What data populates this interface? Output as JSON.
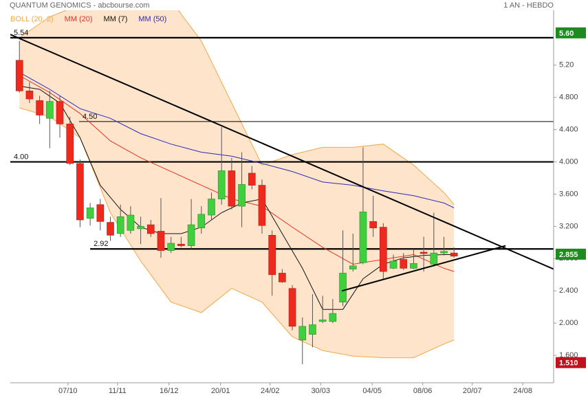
{
  "chart_data": {
    "type": "candlestick",
    "title": "QUANTUM GENOMICS - abcbourse.com",
    "subtitle": "1 AN - HEBDO",
    "x": [
      0,
      1,
      2,
      3,
      4,
      5,
      6,
      7,
      8,
      9,
      10,
      11,
      12,
      13,
      14,
      15,
      16,
      17,
      18,
      19,
      20,
      21,
      22,
      23,
      24,
      25,
      26,
      27,
      28,
      29,
      30,
      31,
      32,
      33,
      34,
      35,
      36,
      37,
      38,
      39,
      40,
      41,
      42,
      43
    ],
    "open": [
      5.26,
      4.88,
      4.76,
      4.54,
      4.75,
      4.47,
      3.98,
      3.3,
      3.47,
      3.25,
      3.11,
      3.15,
      3.17,
      3.22,
      3.14,
      2.9,
      2.98,
      2.96,
      3.18,
      3.34,
      3.54,
      3.89,
      3.45,
      3.86,
      3.71,
      3.09,
      2.62,
      2.43,
      1.79,
      1.86,
      2.02,
      2.02,
      2.26,
      2.67,
      2.75,
      3.26,
      3.19,
      2.68,
      2.79,
      2.68,
      2.88,
      2.73,
      2.87,
      2.87
    ],
    "high": [
      5.5,
      4.99,
      4.82,
      4.88,
      4.82,
      4.56,
      4.03,
      3.49,
      3.54,
      3.32,
      3.47,
      3.45,
      3.32,
      3.28,
      3.55,
      3.07,
      3.07,
      3.54,
      3.45,
      3.62,
      4.43,
      4.05,
      4.12,
      3.95,
      3.78,
      3.15,
      2.67,
      2.47,
      2.07,
      2.36,
      2.34,
      2.3,
      3.15,
      3.11,
      4.18,
      3.58,
      3.24,
      2.85,
      2.87,
      2.92,
      3.07,
      3.37,
      3.07,
      2.94
    ],
    "low": [
      4.86,
      4.73,
      4.47,
      4.17,
      4.3,
      3.96,
      3.19,
      3.21,
      3.15,
      3.02,
      3.07,
      3.11,
      2.98,
      3.07,
      2.81,
      2.87,
      2.94,
      2.92,
      3.11,
      3.28,
      3.47,
      3.41,
      3.19,
      3.66,
      3.11,
      2.34,
      2.5,
      1.91,
      1.49,
      1.7,
      2.0,
      2.0,
      2.21,
      2.64,
      2.73,
      3.07,
      2.55,
      2.67,
      2.66,
      2.67,
      2.64,
      2.7,
      2.84,
      2.81
    ],
    "close": [
      4.88,
      4.78,
      4.58,
      4.75,
      4.47,
      3.98,
      3.28,
      3.43,
      3.26,
      3.09,
      3.32,
      3.34,
      3.2,
      3.11,
      2.9,
      2.99,
      2.96,
      3.22,
      3.35,
      3.54,
      3.89,
      3.45,
      3.72,
      3.71,
      3.21,
      2.6,
      2.51,
      1.96,
      1.96,
      1.98,
      2.04,
      2.12,
      2.62,
      2.71,
      3.38,
      3.18,
      2.64,
      2.77,
      2.68,
      2.74,
      2.87,
      2.87,
      2.89,
      2.83
    ],
    "up_color": "#3fcf3f",
    "down_color": "#ee2a1e",
    "series": [
      {
        "name": "BOLL (20, 2)",
        "color": "#f0a848",
        "fill": "#fde4cb",
        "x": [
          0,
          3,
          6,
          9,
          12,
          15,
          18,
          21,
          24,
          27,
          30,
          33,
          36,
          39,
          42,
          43
        ],
        "upper": [
          5.54,
          5.8,
          5.95,
          6.05,
          6.1,
          6.0,
          5.5,
          4.73,
          3.96,
          4.09,
          4.18,
          4.18,
          4.22,
          3.96,
          3.62,
          3.47
        ],
        "lower": [
          4.67,
          4.56,
          4.3,
          3.37,
          2.77,
          2.26,
          2.13,
          2.43,
          2.26,
          1.83,
          1.66,
          1.59,
          1.57,
          1.57,
          1.74,
          1.79
        ]
      },
      {
        "name": "MM (20)",
        "color": "#e8321e",
        "x": [
          0,
          3,
          6,
          9,
          12,
          15,
          18,
          21,
          24,
          27,
          30,
          33,
          36,
          39,
          42,
          43
        ],
        "values": [
          5.07,
          4.86,
          4.6,
          4.26,
          4.05,
          3.88,
          3.71,
          3.54,
          3.45,
          3.19,
          2.94,
          2.73,
          2.79,
          2.85,
          2.68,
          2.64
        ]
      },
      {
        "name": "MM (7)",
        "color": "#111111",
        "x": [
          0,
          2,
          4,
          6,
          8,
          10,
          12,
          14,
          16,
          18,
          20,
          22,
          24,
          26,
          28,
          30,
          32,
          34,
          36,
          38,
          40,
          42,
          43
        ],
        "values": [
          4.94,
          4.9,
          4.73,
          4.3,
          3.71,
          3.41,
          3.19,
          3.11,
          3.11,
          3.19,
          3.37,
          3.49,
          3.54,
          3.11,
          2.68,
          2.17,
          2.17,
          2.55,
          2.73,
          2.81,
          2.84,
          2.85,
          2.85
        ]
      },
      {
        "name": "MM (50)",
        "color": "#2a2ab8",
        "x": [
          0,
          3,
          6,
          9,
          12,
          15,
          18,
          21,
          24,
          27,
          30,
          33,
          36,
          39,
          42,
          43
        ],
        "values": [
          5.11,
          4.9,
          4.66,
          4.54,
          4.35,
          4.22,
          4.12,
          4.07,
          3.98,
          3.88,
          3.75,
          3.71,
          3.64,
          3.58,
          3.49,
          3.43
        ]
      }
    ],
    "levels": [
      {
        "value": 5.54,
        "label": "5.54",
        "start": -0.9,
        "thick": true
      },
      {
        "value": 4.5,
        "label": "4.50",
        "start": 5.9,
        "thick": false
      },
      {
        "value": 4,
        "label": "4.00",
        "start": -0.9,
        "thick": true
      },
      {
        "value": 2.92,
        "label": "2.92",
        "start": 7.0,
        "thick": true
      }
    ],
    "trendlines": [
      {
        "x": [
          -0.9,
          52.85
        ],
        "y": [
          5.58,
          2.67
        ]
      },
      {
        "x": [
          31.9,
          48.1
        ],
        "y": [
          2.4,
          2.96
        ]
      }
    ],
    "markers": [
      {
        "value": 5.6,
        "label": "5.60",
        "color": "#1f8a1f"
      },
      {
        "value": 2.855,
        "label": "2.855",
        "color": "#1f8a1f"
      },
      {
        "value": 1.51,
        "label": "1.510",
        "color": "#c0121e"
      }
    ],
    "xlim": [
      -0.9,
      52.85
    ],
    "xticks": [
      {
        "value": 4.8,
        "label": "07/10"
      },
      {
        "value": 9.7,
        "label": "11/11"
      },
      {
        "value": 14.8,
        "label": "16/12"
      },
      {
        "value": 19.9,
        "label": "20/01"
      },
      {
        "value": 24.8,
        "label": "24/02"
      },
      {
        "value": 29.8,
        "label": "30/03"
      },
      {
        "value": 34.9,
        "label": "04/05"
      },
      {
        "value": 39.9,
        "label": "08/06"
      },
      {
        "value": 44.8,
        "label": "20/07"
      },
      {
        "value": 49.8,
        "label": "24/08"
      }
    ],
    "ylim": [
      1.26,
      5.88
    ],
    "yticks": [
      {
        "value": 1.6,
        "label": "1.600"
      },
      {
        "value": 2,
        "label": "2.000"
      },
      {
        "value": 2.4,
        "label": "2.400"
      },
      {
        "value": 2.8,
        "label": "2.800"
      },
      {
        "value": 3.2,
        "label": "3.200"
      },
      {
        "value": 3.6,
        "label": "3.600"
      },
      {
        "value": 4,
        "label": "4.000"
      },
      {
        "value": 4.4,
        "label": "4.400"
      },
      {
        "value": 4.8,
        "label": "4.800"
      },
      {
        "value": 5.2,
        "label": "5.20"
      }
    ]
  }
}
